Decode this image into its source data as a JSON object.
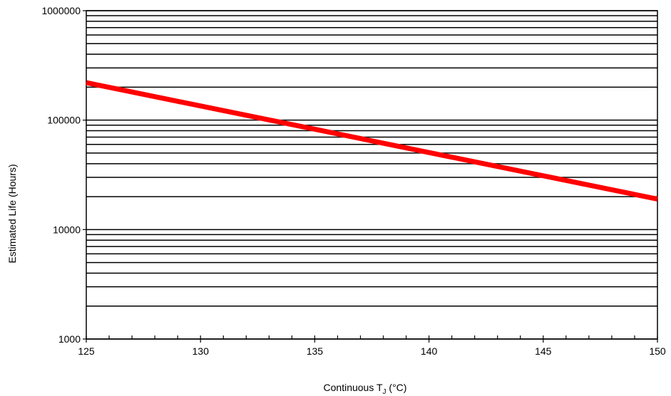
{
  "chart_data": {
    "type": "line",
    "title": "",
    "xlabel": "Continuous T",
    "xlabel_subscript": "J",
    "xlabel_suffix": " (°C)",
    "ylabel": "Estimated Life (Hours)",
    "xlim": [
      125,
      150
    ],
    "ylim": [
      1000,
      1000000
    ],
    "yscale": "log",
    "x_ticks": [
      125,
      130,
      135,
      140,
      145,
      150
    ],
    "x_tick_labels": [
      "125",
      "130",
      "135",
      "140",
      "145",
      "150"
    ],
    "x_minor_step": 1,
    "y_ticks": [
      1000,
      10000,
      100000,
      1000000
    ],
    "y_tick_labels": [
      "1000",
      "10000",
      "100000",
      "1000000"
    ],
    "grid": "horizontal-minor",
    "series": [
      {
        "color": "#ff0000",
        "x": [
          125,
          150
        ],
        "y": [
          220000,
          19000
        ]
      }
    ]
  }
}
